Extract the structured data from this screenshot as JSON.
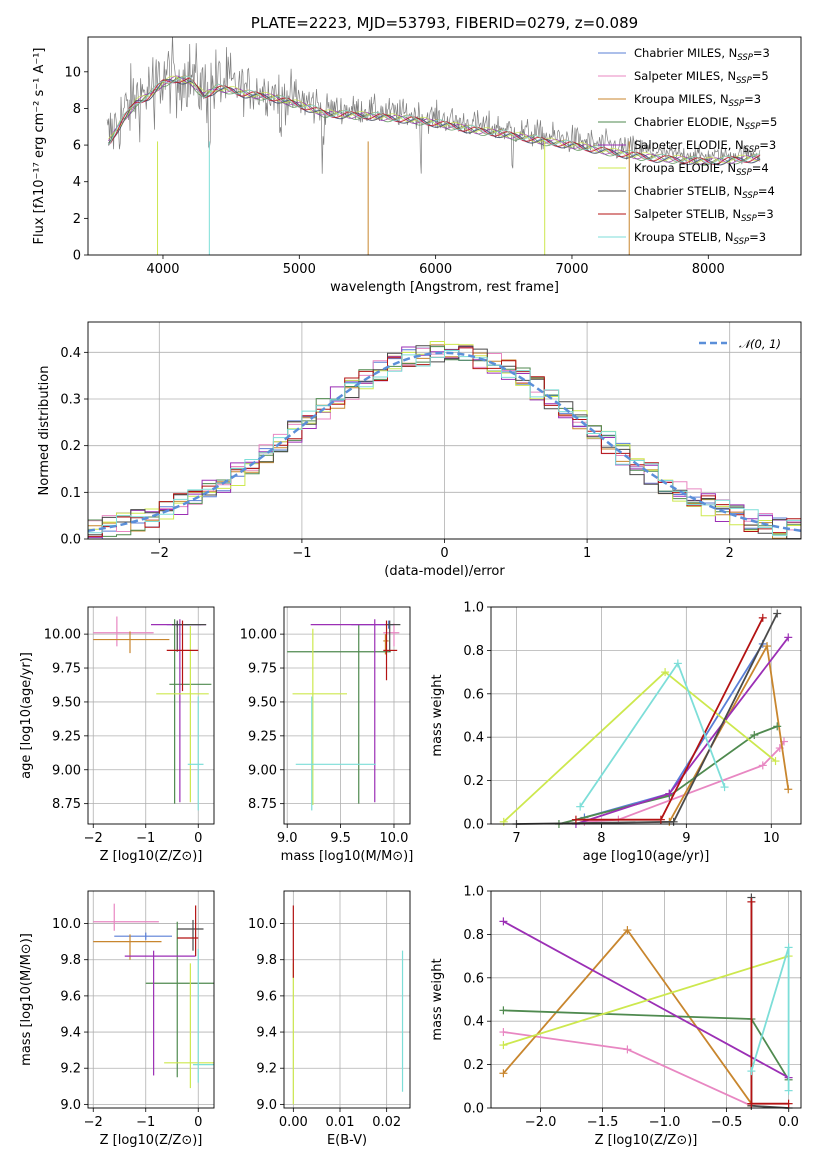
{
  "figure": {
    "title": "PLATE=2223, MJD=53793, FIBERID=0279, z=0.089"
  },
  "series_colors": [
    "#5a7fd6",
    "#e887c2",
    "#c8862e",
    "#4f8a4f",
    "#9b2fb5",
    "#cde84e",
    "#4a4a4a",
    "#b41313",
    "#7dded8"
  ],
  "chart_data": [
    {
      "id": "spectrum",
      "type": "line",
      "title": "PLATE=2223, MJD=53793, FIBERID=0279, z=0.089",
      "xlabel": "wavelength [Angstrom, rest frame]",
      "ylabel": "Flux [f_λ 10^-17 erg cm^-2 s^-1 A^-1]",
      "xlim": [
        3450,
        8680
      ],
      "ylim": [
        0,
        11.9
      ],
      "xticks": [
        4000,
        5000,
        6000,
        7000,
        8000
      ],
      "yticks": [
        0,
        2,
        4,
        6,
        8,
        10
      ],
      "grid": false,
      "legend_position": "top-right",
      "legend": [
        {
          "label": "Chabrier MILES, N",
          "sub": "SSP",
          "suffix": "=3"
        },
        {
          "label": "Salpeter MILES, N",
          "sub": "SSP",
          "suffix": "=5"
        },
        {
          "label": "Kroupa MILES, N",
          "sub": "SSP",
          "suffix": "=3"
        },
        {
          "label": "Chabrier ELODIE, N",
          "sub": "SSP",
          "suffix": "=5"
        },
        {
          "label": "Salpeter ELODIE, N",
          "sub": "SSP",
          "suffix": "=3"
        },
        {
          "label": "Kroupa ELODIE, N",
          "sub": "SSP",
          "suffix": "=4"
        },
        {
          "label": "Chabrier STELIB, N",
          "sub": "SSP",
          "suffix": "=4"
        },
        {
          "label": "Salpeter STELIB, N",
          "sub": "SSP",
          "suffix": "=3"
        },
        {
          "label": "Kroupa STELIB, N",
          "sub": "SSP",
          "suffix": "=3"
        }
      ],
      "observed_color": "#7f7f7f",
      "continuum_points": [
        [
          3600,
          6.4
        ],
        [
          3700,
          7.6
        ],
        [
          3800,
          8.6
        ],
        [
          3900,
          9.0
        ],
        [
          4000,
          9.7
        ],
        [
          4100,
          9.9
        ],
        [
          4200,
          9.8
        ],
        [
          4300,
          9.0
        ],
        [
          4400,
          9.4
        ],
        [
          4500,
          9.3
        ],
        [
          4600,
          9.1
        ],
        [
          4800,
          8.9
        ],
        [
          5000,
          8.5
        ],
        [
          5200,
          8.0
        ],
        [
          5500,
          7.9
        ],
        [
          5800,
          7.7
        ],
        [
          6000,
          7.5
        ],
        [
          6300,
          7.1
        ],
        [
          6500,
          6.9
        ],
        [
          6800,
          6.5
        ],
        [
          7000,
          6.3
        ],
        [
          7300,
          5.9
        ],
        [
          7600,
          5.6
        ],
        [
          8000,
          5.4
        ],
        [
          8400,
          5.6
        ]
      ],
      "absorption_lines": [
        3934,
        4102,
        4340,
        4861,
        5175,
        5890,
        6563
      ]
    },
    {
      "id": "residuals",
      "type": "line",
      "xlabel": "(data-model)/error",
      "ylabel": "Normed distribution",
      "xlim": [
        -2.5,
        2.5
      ],
      "ylim": [
        0,
        0.465
      ],
      "xticks": [
        -2,
        -1,
        0,
        1,
        2
      ],
      "yticks": [
        0.0,
        0.1,
        0.2,
        0.3,
        0.4
      ],
      "grid": true,
      "legend_position": "top-right",
      "legend": [
        {
          "label": "N(0, 1)"
        }
      ],
      "reference_curve": {
        "name": "N(0, 1)",
        "mean": 0,
        "sigma": 1,
        "color": "#5b8fd9"
      },
      "bin_width": 0.1
    },
    {
      "id": "age_vs_Z",
      "type": "scatter",
      "xlabel": "Z [log10(Z/Z⊙)]",
      "ylabel": "age  [log10(age/yr)]",
      "xlim": [
        -2.1,
        0.3
      ],
      "ylim": [
        8.6,
        10.2
      ],
      "xticks": [
        -2,
        -1,
        0
      ],
      "yticks": [
        8.75,
        9.0,
        9.25,
        9.5,
        9.75,
        10.0
      ],
      "grid": true,
      "errorbars": [
        {
          "series": 0,
          "x": -0.4,
          "y": 10.07,
          "xerr": [
            0.2,
            0.45
          ],
          "yerr": [
            0.02,
            0.02
          ]
        },
        {
          "series": 1,
          "x": -1.55,
          "y": 10.01,
          "xerr": [
            0.45,
            0.7
          ],
          "yerr": [
            0.1,
            0.12
          ]
        },
        {
          "series": 2,
          "x": -1.3,
          "y": 9.96,
          "xerr": [
            0.7,
            0.75
          ],
          "yerr": [
            0.1,
            0.06
          ]
        },
        {
          "series": 3,
          "x": -0.45,
          "y": 9.63,
          "xerr": [
            0.1,
            0.7
          ],
          "yerr": [
            0.88,
            0.48
          ]
        },
        {
          "series": 4,
          "x": -0.35,
          "y": 10.07,
          "xerr": [
            0.55,
            0.5
          ],
          "yerr": [
            1.31,
            0.04
          ]
        },
        {
          "series": 5,
          "x": -0.15,
          "y": 9.56,
          "xerr": [
            0.65,
            0.35
          ],
          "yerr": [
            0.8,
            0.5
          ]
        },
        {
          "series": 6,
          "x": -0.4,
          "y": 10.07,
          "xerr": [
            0.1,
            0.55
          ],
          "yerr": [
            0.2,
            0.03
          ]
        },
        {
          "series": 7,
          "x": -0.3,
          "y": 9.88,
          "xerr": [
            0.3,
            0.3
          ],
          "yerr": [
            0.3,
            0.22
          ]
        },
        {
          "series": 8,
          "x": 0.0,
          "y": 9.04,
          "xerr": [
            0.2,
            0.1
          ],
          "yerr": [
            0.34,
            0.5
          ]
        }
      ]
    },
    {
      "id": "age_vs_mass",
      "type": "scatter",
      "xlabel": "mass [log10(M/M⊙)]",
      "ylabel": "",
      "xlim": [
        8.97,
        10.15
      ],
      "ylim": [
        8.6,
        10.2
      ],
      "xticks": [
        9.0,
        9.5,
        10.0
      ],
      "yticks": [
        8.75,
        9.0,
        9.25,
        9.5,
        9.75,
        10.0
      ],
      "grid": true,
      "errorbars": [
        {
          "series": 0,
          "x": 9.95,
          "y": 10.07,
          "xerr": [
            0.35,
            0.05
          ],
          "yerr": [
            0.03,
            0.03
          ]
        },
        {
          "series": 1,
          "x": 10.0,
          "y": 10.01,
          "xerr": [
            0.1,
            0.05
          ],
          "yerr": [
            0.1,
            0.07
          ]
        },
        {
          "series": 2,
          "x": 9.92,
          "y": 9.95,
          "xerr": [
            0.02,
            0.03
          ],
          "yerr": [
            0.1,
            0.05
          ]
        },
        {
          "series": 3,
          "x": 9.67,
          "y": 9.87,
          "xerr": [
            0.67,
            0.3
          ],
          "yerr": [
            1.12,
            0.2
          ]
        },
        {
          "series": 4,
          "x": 9.82,
          "y": 10.07,
          "xerr": [
            0.6,
            0.1
          ],
          "yerr": [
            1.31,
            0.04
          ]
        },
        {
          "series": 5,
          "x": 9.24,
          "y": 9.56,
          "xerr": [
            0.19,
            0.32
          ],
          "yerr": [
            0.82,
            0.48
          ]
        },
        {
          "series": 6,
          "x": 9.96,
          "y": 10.07,
          "xerr": [
            0.04,
            0.1
          ],
          "yerr": [
            0.2,
            0.03
          ]
        },
        {
          "series": 7,
          "x": 9.93,
          "y": 9.88,
          "xerr": [
            0.03,
            0.1
          ],
          "yerr": [
            0.22,
            0.22
          ]
        },
        {
          "series": 8,
          "x": 9.23,
          "y": 9.04,
          "xerr": [
            0.15,
            0.6
          ],
          "yerr": [
            0.34,
            0.5
          ]
        }
      ]
    },
    {
      "id": "weight_vs_age",
      "type": "line",
      "xlabel": "age  [log10(age/yr)]",
      "ylabel": "mass weight",
      "xlim": [
        6.7,
        10.35
      ],
      "ylim": [
        0.0,
        1.0
      ],
      "xticks": [
        7,
        8,
        9,
        10
      ],
      "yticks": [
        0.0,
        0.2,
        0.4,
        0.6,
        0.8,
        1.0
      ],
      "grid": true,
      "series": [
        {
          "series": 0,
          "x": [
            7.8,
            8.8,
            9.9
          ],
          "y": [
            0.03,
            0.14,
            0.83
          ]
        },
        {
          "series": 1,
          "x": [
            7.8,
            8.2,
            9.9,
            10.1,
            10.15
          ],
          "y": [
            0.01,
            0.02,
            0.27,
            0.35,
            0.38
          ]
        },
        {
          "series": 2,
          "x": [
            8.8,
            9.95,
            10.2
          ],
          "y": [
            0.01,
            0.82,
            0.16
          ]
        },
        {
          "series": 3,
          "x": [
            7.5,
            8.8,
            9.8,
            10.07
          ],
          "y": [
            0.0,
            0.13,
            0.41,
            0.45
          ]
        },
        {
          "series": 4,
          "x": [
            7.7,
            8.8,
            10.2
          ],
          "y": [
            0.0,
            0.14,
            0.86
          ]
        },
        {
          "series": 5,
          "x": [
            6.85,
            8.75,
            10.05
          ],
          "y": [
            0.01,
            0.7,
            0.29
          ]
        },
        {
          "series": 6,
          "x": [
            7.0,
            8.85,
            10.07
          ],
          "y": [
            0.0,
            0.01,
            0.97
          ]
        },
        {
          "series": 7,
          "x": [
            7.7,
            8.7,
            9.9
          ],
          "y": [
            0.02,
            0.02,
            0.95
          ]
        },
        {
          "series": 8,
          "x": [
            7.75,
            8.9,
            9.45
          ],
          "y": [
            0.08,
            0.74,
            0.17
          ]
        }
      ]
    },
    {
      "id": "mass_vs_Z",
      "type": "scatter",
      "xlabel": "Z [log10(Z/Z⊙)]",
      "ylabel": "mass [log10(M/M⊙)]",
      "xlim": [
        -2.1,
        0.3
      ],
      "ylim": [
        8.98,
        10.18
      ],
      "xticks": [
        -2,
        -1,
        0
      ],
      "yticks": [
        9.0,
        9.2,
        9.4,
        9.6,
        9.8,
        10.0
      ],
      "grid": true,
      "errorbars": [
        {
          "series": 0,
          "x": -1.0,
          "y": 9.93,
          "xerr": [
            0.6,
            0.5
          ],
          "yerr": [
            0.02,
            0.02
          ]
        },
        {
          "series": 1,
          "x": -1.6,
          "y": 10.01,
          "xerr": [
            0.4,
            0.85
          ],
          "yerr": [
            0.05,
            0.1
          ]
        },
        {
          "series": 2,
          "x": -1.3,
          "y": 9.9,
          "xerr": [
            0.7,
            0.6
          ],
          "yerr": [
            0.1,
            0.04
          ]
        },
        {
          "series": 3,
          "x": -0.4,
          "y": 9.67,
          "xerr": [
            0.6,
            0.7
          ],
          "yerr": [
            0.52,
            0.34
          ]
        },
        {
          "series": 4,
          "x": -0.85,
          "y": 9.82,
          "xerr": [
            0.55,
            0.8
          ],
          "yerr": [
            0.66,
            0.03
          ]
        },
        {
          "series": 5,
          "x": -0.15,
          "y": 9.23,
          "xerr": [
            0.5,
            0.45
          ],
          "yerr": [
            0.14,
            0.55
          ]
        },
        {
          "series": 6,
          "x": -0.1,
          "y": 9.97,
          "xerr": [
            0.3,
            0.2
          ],
          "yerr": [
            0.12,
            0.05
          ]
        },
        {
          "series": 7,
          "x": -0.05,
          "y": 9.92,
          "xerr": [
            0.35,
            0.05
          ],
          "yerr": [
            0.1,
            0.18
          ]
        },
        {
          "series": 8,
          "x": 0.0,
          "y": 9.22,
          "xerr": [
            0.1,
            0.3
          ],
          "yerr": [
            0.1,
            0.64
          ]
        }
      ]
    },
    {
      "id": "mass_vs_ebv",
      "type": "scatter",
      "xlabel": "E(B-V)",
      "ylabel": "",
      "xlim": [
        -0.002,
        0.025
      ],
      "ylim": [
        8.98,
        10.18
      ],
      "xticks": [
        0.0,
        0.01,
        0.02
      ],
      "xtick_labels": [
        "0.00",
        "0.01",
        "0.02"
      ],
      "yticks": [
        9.0,
        9.2,
        9.4,
        9.6,
        9.8,
        10.0
      ],
      "grid": true,
      "errorbars": [
        {
          "series": 5,
          "x": 0.0,
          "y": 9.22,
          "xerr": [
            0,
            0
          ],
          "yerr": [
            0.22,
            0.56
          ]
        },
        {
          "series": 7,
          "x": 0.0,
          "y": 9.9,
          "xerr": [
            0,
            0
          ],
          "yerr": [
            0.2,
            0.2
          ]
        },
        {
          "series": 8,
          "x": 0.0234,
          "y": 9.45,
          "xerr": [
            0,
            0
          ],
          "yerr": [
            0.38,
            0.4
          ]
        }
      ]
    },
    {
      "id": "weight_vs_Z",
      "type": "line",
      "xlabel": "Z [log10(Z/Z⊙)]",
      "ylabel": "mass weight",
      "xlim": [
        -2.4,
        0.1
      ],
      "ylim": [
        0.0,
        1.0
      ],
      "xticks": [
        -2.0,
        -1.5,
        -1.0,
        -0.5,
        0.0
      ],
      "xtick_labels": [
        "−2.0",
        "−1.5",
        "−1.0",
        "−0.5",
        "0.0"
      ],
      "yticks": [
        0.0,
        0.2,
        0.4,
        0.6,
        0.8,
        1.0
      ],
      "grid": true,
      "series": [
        {
          "series": 1,
          "x": [
            -2.3,
            -1.3,
            -0.3
          ],
          "y": [
            0.35,
            0.27,
            0.01
          ]
        },
        {
          "series": 2,
          "x": [
            -2.3,
            -1.3,
            -0.3,
            -0.3
          ],
          "y": [
            0.16,
            0.82,
            0.02,
            0.01
          ]
        },
        {
          "series": 3,
          "x": [
            -2.3,
            -0.3,
            0.0
          ],
          "y": [
            0.45,
            0.41,
            0.13
          ]
        },
        {
          "series": 4,
          "x": [
            -2.3,
            0.0
          ],
          "y": [
            0.86,
            0.14
          ]
        },
        {
          "series": 5,
          "x": [
            -2.3,
            0.0
          ],
          "y": [
            0.29,
            0.7
          ]
        },
        {
          "series": 6,
          "x": [
            -0.3,
            -0.3,
            0.0
          ],
          "y": [
            0.97,
            0.01,
            0.0
          ]
        },
        {
          "series": 7,
          "x": [
            -0.3,
            -0.3,
            0.0
          ],
          "y": [
            0.95,
            0.02,
            0.02
          ]
        },
        {
          "series": 8,
          "x": [
            -0.3,
            0.0,
            0.0
          ],
          "y": [
            0.17,
            0.74,
            0.08
          ]
        }
      ]
    }
  ]
}
